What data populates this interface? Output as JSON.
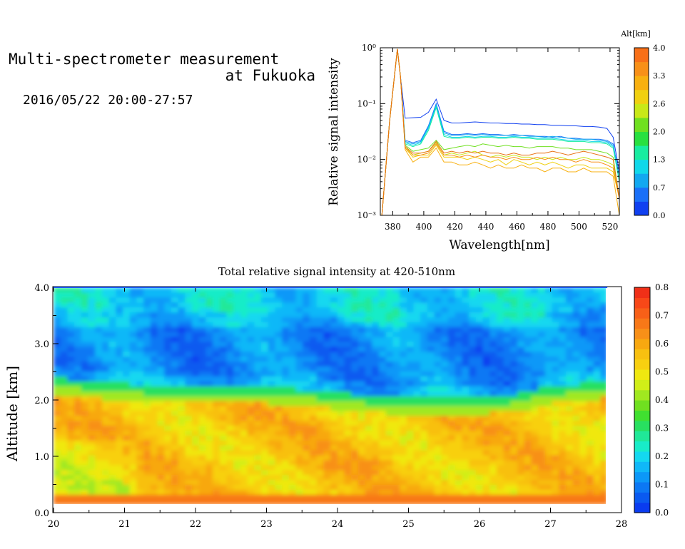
{
  "header": {
    "title_line1": "Multi-spectrometer measurement",
    "title_line2": "at Fukuoka",
    "subtitle": "2016/05/22 20:00-27:57"
  },
  "chart_data": [
    {
      "type": "line",
      "xlabel": "Wavelength[nm]",
      "ylabel": "Relative signal intensity",
      "xlim": [
        372,
        526
      ],
      "ylim": [
        0.001,
        1
      ],
      "yscale": "log",
      "x_ticks": [
        "380",
        "400",
        "420",
        "440",
        "460",
        "480",
        "500",
        "520"
      ],
      "y_ticks": [
        "10⁻³",
        "10⁻²",
        "10⁻¹",
        "10⁰"
      ],
      "colorbar": {
        "title": "Alt[km]",
        "tick_labels": [
          "0.0",
          "0.7",
          "1.3",
          "2.0",
          "2.6",
          "3.3",
          "4.0"
        ],
        "colors": [
          "#1040f0",
          "#1a70f8",
          "#12a8f0",
          "#10d8ea",
          "#18eca0",
          "#28e040",
          "#70e020",
          "#c8e818",
          "#f0d010",
          "#f8b010",
          "#f89018",
          "#f87018"
        ]
      },
      "x": [
        373,
        378,
        383,
        385,
        388,
        393,
        398,
        403,
        408,
        413,
        418,
        423,
        428,
        433,
        438,
        443,
        448,
        453,
        458,
        463,
        468,
        473,
        478,
        483,
        488,
        493,
        498,
        503,
        508,
        513,
        518,
        522,
        526
      ],
      "series": [
        {
          "color": "#1040f0",
          "values": [
            0.001,
            0.05,
            0.95,
            0.3,
            0.055,
            0.056,
            0.057,
            0.07,
            0.12,
            0.05,
            0.045,
            0.045,
            0.046,
            0.047,
            0.046,
            0.045,
            0.045,
            0.044,
            0.044,
            0.043,
            0.043,
            0.042,
            0.042,
            0.041,
            0.041,
            0.04,
            0.04,
            0.039,
            0.039,
            0.038,
            0.036,
            0.025,
            0.006
          ]
        },
        {
          "color": "#1a70f8",
          "values": [
            0.001,
            0.05,
            0.95,
            0.3,
            0.022,
            0.02,
            0.022,
            0.04,
            0.1,
            0.032,
            0.028,
            0.028,
            0.029,
            0.028,
            0.029,
            0.028,
            0.028,
            0.027,
            0.028,
            0.027,
            0.027,
            0.026,
            0.026,
            0.025,
            0.026,
            0.024,
            0.024,
            0.023,
            0.023,
            0.023,
            0.022,
            0.019,
            0.005
          ]
        },
        {
          "color": "#12a8f0",
          "values": [
            0.001,
            0.05,
            0.95,
            0.3,
            0.021,
            0.019,
            0.021,
            0.038,
            0.095,
            0.03,
            0.027,
            0.027,
            0.028,
            0.027,
            0.028,
            0.027,
            0.027,
            0.027,
            0.027,
            0.027,
            0.026,
            0.026,
            0.025,
            0.026,
            0.025,
            0.024,
            0.023,
            0.023,
            0.023,
            0.022,
            0.021,
            0.018,
            0.005
          ]
        },
        {
          "color": "#10d8ea",
          "values": [
            0.001,
            0.05,
            0.95,
            0.3,
            0.02,
            0.018,
            0.02,
            0.036,
            0.09,
            0.028,
            0.025,
            0.025,
            0.026,
            0.025,
            0.026,
            0.026,
            0.025,
            0.025,
            0.026,
            0.025,
            0.025,
            0.024,
            0.024,
            0.024,
            0.023,
            0.022,
            0.022,
            0.022,
            0.021,
            0.021,
            0.02,
            0.017,
            0.004
          ]
        },
        {
          "color": "#18eca0",
          "values": [
            0.001,
            0.05,
            0.95,
            0.3,
            0.019,
            0.017,
            0.019,
            0.033,
            0.085,
            0.026,
            0.024,
            0.024,
            0.025,
            0.024,
            0.025,
            0.025,
            0.024,
            0.024,
            0.025,
            0.024,
            0.024,
            0.023,
            0.023,
            0.023,
            0.022,
            0.021,
            0.021,
            0.021,
            0.02,
            0.02,
            0.019,
            0.016,
            0.004
          ]
        },
        {
          "color": "#70e020",
          "values": [
            0.001,
            0.05,
            0.95,
            0.3,
            0.018,
            0.014,
            0.015,
            0.016,
            0.022,
            0.015,
            0.016,
            0.017,
            0.018,
            0.017,
            0.019,
            0.018,
            0.017,
            0.018,
            0.017,
            0.017,
            0.016,
            0.017,
            0.017,
            0.017,
            0.016,
            0.016,
            0.015,
            0.015,
            0.015,
            0.014,
            0.013,
            0.011,
            0.002
          ]
        },
        {
          "color": "#c8e818",
          "values": [
            0.001,
            0.05,
            0.95,
            0.3,
            0.017,
            0.012,
            0.013,
            0.014,
            0.02,
            0.012,
            0.013,
            0.012,
            0.013,
            0.014,
            0.012,
            0.011,
            0.012,
            0.011,
            0.012,
            0.011,
            0.011,
            0.01,
            0.011,
            0.01,
            0.011,
            0.01,
            0.01,
            0.011,
            0.01,
            0.01,
            0.009,
            0.008,
            0.002
          ]
        },
        {
          "color": "#f0d010",
          "values": [
            0.001,
            0.05,
            0.95,
            0.3,
            0.016,
            0.011,
            0.012,
            0.012,
            0.018,
            0.011,
            0.011,
            0.011,
            0.01,
            0.011,
            0.01,
            0.009,
            0.01,
            0.008,
            0.01,
            0.009,
            0.008,
            0.009,
            0.008,
            0.009,
            0.008,
            0.007,
            0.008,
            0.008,
            0.007,
            0.007,
            0.007,
            0.006,
            0.002
          ]
        },
        {
          "color": "#f8b010",
          "values": [
            0.001,
            0.05,
            0.95,
            0.3,
            0.015,
            0.009,
            0.011,
            0.011,
            0.016,
            0.009,
            0.009,
            0.008,
            0.008,
            0.009,
            0.008,
            0.007,
            0.008,
            0.007,
            0.007,
            0.008,
            0.007,
            0.007,
            0.006,
            0.007,
            0.007,
            0.006,
            0.006,
            0.007,
            0.006,
            0.006,
            0.006,
            0.005,
            0.001
          ]
        },
        {
          "color": "#f89018",
          "values": [
            0.001,
            0.05,
            0.95,
            0.3,
            0.016,
            0.012,
            0.012,
            0.013,
            0.019,
            0.012,
            0.012,
            0.011,
            0.012,
            0.011,
            0.012,
            0.011,
            0.011,
            0.01,
            0.011,
            0.01,
            0.01,
            0.011,
            0.01,
            0.011,
            0.01,
            0.01,
            0.009,
            0.01,
            0.009,
            0.009,
            0.008,
            0.007,
            0.002
          ]
        },
        {
          "color": "#e87010",
          "values": [
            0.001,
            0.05,
            0.95,
            0.3,
            0.017,
            0.013,
            0.013,
            0.014,
            0.021,
            0.013,
            0.014,
            0.013,
            0.014,
            0.013,
            0.014,
            0.013,
            0.013,
            0.012,
            0.013,
            0.012,
            0.012,
            0.013,
            0.013,
            0.014,
            0.013,
            0.012,
            0.013,
            0.014,
            0.013,
            0.012,
            0.011,
            0.01,
            0.002
          ]
        }
      ]
    },
    {
      "type": "heatmap",
      "title": "Total relative signal intensity at 420-510nm",
      "xlabel": "",
      "ylabel": "Altitude [km]",
      "xlim": [
        20,
        28
      ],
      "ylim": [
        0,
        4
      ],
      "clim": [
        0,
        0.8
      ],
      "x_ticks": [
        "20",
        "21",
        "22",
        "23",
        "24",
        "25",
        "26",
        "27",
        "28"
      ],
      "y_ticks": [
        "0.0",
        "1.0",
        "2.0",
        "3.0",
        "4.0"
      ],
      "colorbar": {
        "tick_labels": [
          "0.0",
          "0.1",
          "0.2",
          "0.3",
          "0.4",
          "0.5",
          "0.6",
          "0.7",
          "0.8"
        ],
        "colors": [
          "#0a3cf0",
          "#0a5af0",
          "#0c78f4",
          "#0c98f8",
          "#10b8f8",
          "#14d8f0",
          "#18ecc8",
          "#20e898",
          "#28e060",
          "#40e030",
          "#70e020",
          "#a0e820",
          "#d0ee18",
          "#f0e810",
          "#f8d010",
          "#f8c010",
          "#f8a810",
          "#f89018",
          "#f87818",
          "#f86018",
          "#f84818",
          "#f03018"
        ],
        "bounds": [
          0.0,
          0.8
        ]
      },
      "profile_notes": "boundary altitude (km) of blue-to-orange transition through time",
      "boundary_time": [
        20.0,
        20.5,
        21.0,
        21.5,
        22.0,
        22.5,
        23.0,
        23.5,
        24.0,
        24.5,
        25.0,
        25.5,
        26.0,
        26.5,
        27.0,
        27.5,
        27.8
      ],
      "boundary_alt": [
        2.2,
        2.15,
        2.1,
        2.05,
        2.05,
        2.05,
        2.05,
        2.0,
        1.95,
        1.88,
        1.85,
        1.85,
        1.85,
        1.9,
        2.05,
        2.1,
        2.15
      ]
    }
  ]
}
